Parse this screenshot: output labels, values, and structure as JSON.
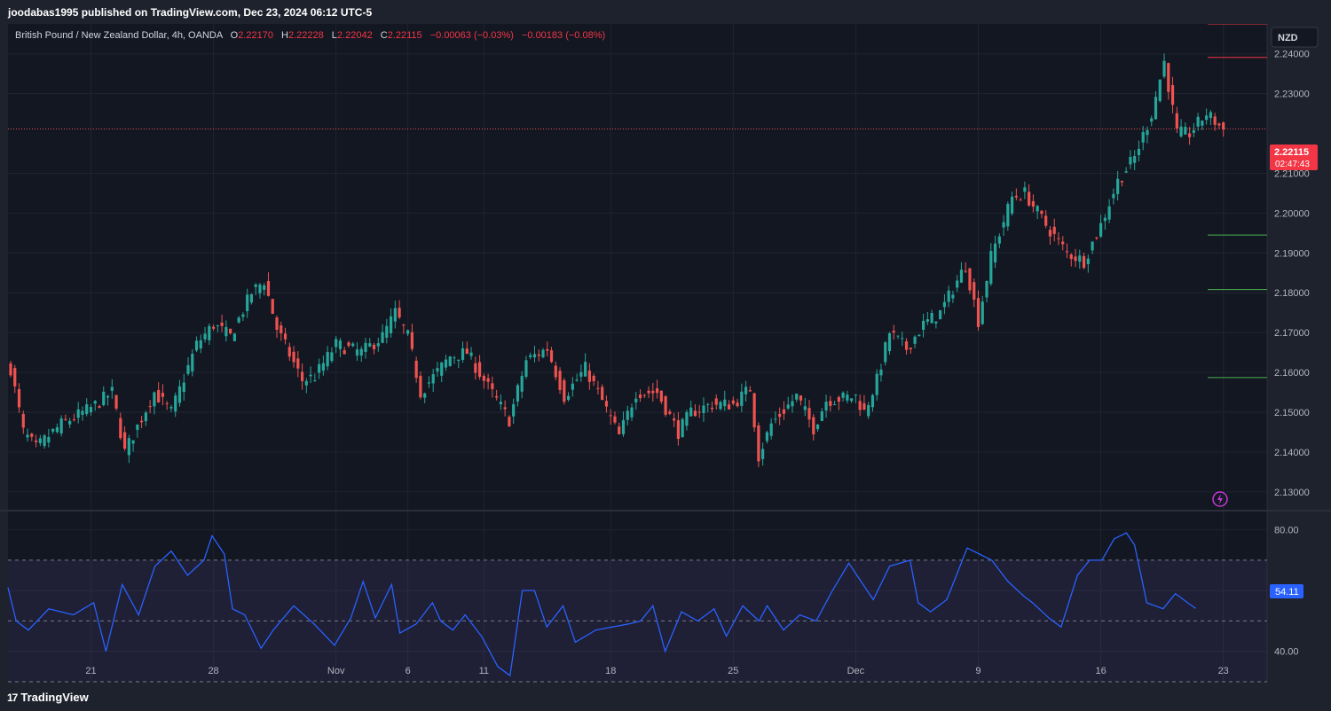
{
  "header": {
    "published": "joodabas1995 published on TradingView.com, Dec 23, 2024 06:12 UTC-5"
  },
  "footer": {
    "logo_text": "TradingView",
    "logo_mark": "17"
  },
  "colors": {
    "up": "#26a69a",
    "down": "#ef5350",
    "rsi_line": "#2962ff",
    "background": "#131722",
    "grid": "#1f2430",
    "text": "#b2b5be"
  },
  "icons": {
    "flash": "lightning-icon"
  },
  "chart_data": [
    {
      "type": "candlestick",
      "legend": {
        "symbol": "British Pound / New Zealand Dollar, 4h, OANDA",
        "o_label": "O",
        "o_value": "2.22170",
        "h_label": "H",
        "h_value": "2.22228",
        "l_label": "L",
        "l_value": "2.22042",
        "c_label": "C",
        "c_value": "2.22115",
        "change": "−0.00063 (−0.03%)",
        "change2": "−0.00183 (−0.08%)"
      },
      "currency_label": "NZD",
      "last_price_label": "2.22115",
      "countdown": "02:47:43",
      "last_price": 2.22115,
      "ylim": [
        2.1255,
        2.2475
      ],
      "yticks": [
        "2.24000",
        "2.23000",
        "2.21000",
        "2.20000",
        "2.19000",
        "2.18000",
        "2.17000",
        "2.16000",
        "2.15000",
        "2.14000",
        "2.13000"
      ],
      "ytick_values": [
        2.24,
        2.23,
        2.21,
        2.2,
        2.19,
        2.18,
        2.17,
        2.16,
        2.15,
        2.14,
        2.13
      ],
      "xticks": [
        "21",
        "28",
        "Nov",
        "6",
        "11",
        "18",
        "25",
        "Dec",
        "9",
        "16",
        "23"
      ],
      "xtick_index": [
        19,
        48,
        77,
        94,
        112,
        142,
        171,
        200,
        229,
        258,
        287
      ],
      "levels": [
        {
          "price": 2.2475,
          "color": "#f23645"
        },
        {
          "price": 2.2391,
          "color": "#f23645"
        },
        {
          "price": 2.2169,
          "color": "#131722"
        },
        {
          "price": 2.1945,
          "color": "#4caf50"
        },
        {
          "price": 2.1808,
          "color": "#4caf50"
        },
        {
          "price": 2.1587,
          "color": "#4caf50"
        }
      ],
      "anchors": [
        [
          0,
          2.161
        ],
        [
          3,
          2.145
        ],
        [
          6,
          2.141
        ],
        [
          12,
          2.147
        ],
        [
          19,
          2.151
        ],
        [
          24,
          2.155
        ],
        [
          27,
          2.14
        ],
        [
          34,
          2.155
        ],
        [
          38,
          2.15
        ],
        [
          44,
          2.167
        ],
        [
          48,
          2.172
        ],
        [
          52,
          2.169
        ],
        [
          57,
          2.18
        ],
        [
          60,
          2.183
        ],
        [
          63,
          2.171
        ],
        [
          69,
          2.158
        ],
        [
          72,
          2.159
        ],
        [
          77,
          2.167
        ],
        [
          83,
          2.165
        ],
        [
          88,
          2.169
        ],
        [
          91,
          2.175
        ],
        [
          94,
          2.169
        ],
        [
          97,
          2.155
        ],
        [
          104,
          2.164
        ],
        [
          108,
          2.165
        ],
        [
          112,
          2.158
        ],
        [
          118,
          2.148
        ],
        [
          122,
          2.163
        ],
        [
          127,
          2.166
        ],
        [
          131,
          2.154
        ],
        [
          136,
          2.161
        ],
        [
          139,
          2.155
        ],
        [
          144,
          2.144
        ],
        [
          148,
          2.155
        ],
        [
          153,
          2.155
        ],
        [
          158,
          2.145
        ],
        [
          161,
          2.15
        ],
        [
          166,
          2.152
        ],
        [
          171,
          2.152
        ],
        [
          175,
          2.156
        ],
        [
          177,
          2.139
        ],
        [
          180,
          2.147
        ],
        [
          186,
          2.154
        ],
        [
          190,
          2.146
        ],
        [
          193,
          2.153
        ],
        [
          200,
          2.154
        ],
        [
          202,
          2.15
        ],
        [
          205,
          2.158
        ],
        [
          208,
          2.17
        ],
        [
          212,
          2.166
        ],
        [
          216,
          2.172
        ],
        [
          220,
          2.175
        ],
        [
          226,
          2.187
        ],
        [
          229,
          2.173
        ],
        [
          232,
          2.189
        ],
        [
          237,
          2.204
        ],
        [
          240,
          2.205
        ],
        [
          245,
          2.197
        ],
        [
          250,
          2.19
        ],
        [
          254,
          2.188
        ],
        [
          258,
          2.197
        ],
        [
          262,
          2.208
        ],
        [
          266,
          2.214
        ],
        [
          270,
          2.225
        ],
        [
          273,
          2.238
        ],
        [
          276,
          2.22
        ],
        [
          279,
          2.22
        ],
        [
          283,
          2.225
        ],
        [
          287,
          2.221
        ]
      ]
    },
    {
      "type": "line",
      "name": "RSI",
      "value_label": "54.11",
      "ylim": [
        30,
        86
      ],
      "yticks": [
        "80.00",
        "60.00",
        "40.00"
      ],
      "ytick_values": [
        80,
        60,
        40
      ],
      "bands": [
        70,
        50,
        30
      ],
      "anchors": [
        [
          0,
          61
        ],
        [
          2,
          50
        ],
        [
          5,
          47
        ],
        [
          10,
          54
        ],
        [
          16,
          52
        ],
        [
          21,
          56
        ],
        [
          24,
          40
        ],
        [
          28,
          62
        ],
        [
          32,
          52
        ],
        [
          36,
          68
        ],
        [
          40,
          73
        ],
        [
          44,
          65
        ],
        [
          48,
          70
        ],
        [
          50,
          78
        ],
        [
          53,
          72
        ],
        [
          55,
          54
        ],
        [
          58,
          52
        ],
        [
          62,
          41
        ],
        [
          65,
          47
        ],
        [
          70,
          55
        ],
        [
          75,
          49
        ],
        [
          80,
          42
        ],
        [
          84,
          51
        ],
        [
          87,
          63
        ],
        [
          90,
          51
        ],
        [
          94,
          62
        ],
        [
          96,
          46
        ],
        [
          100,
          49
        ],
        [
          104,
          56
        ],
        [
          106,
          50
        ],
        [
          109,
          47
        ],
        [
          112,
          52
        ],
        [
          116,
          45
        ],
        [
          120,
          35
        ],
        [
          123,
          32
        ],
        [
          126,
          60
        ],
        [
          129,
          60
        ],
        [
          132,
          48
        ],
        [
          136,
          55
        ],
        [
          139,
          43
        ],
        [
          144,
          47
        ],
        [
          148,
          48
        ],
        [
          152,
          49
        ],
        [
          155,
          50
        ],
        [
          158,
          55
        ],
        [
          161,
          40
        ],
        [
          165,
          53
        ],
        [
          169,
          50
        ],
        [
          173,
          54
        ],
        [
          176,
          45
        ],
        [
          180,
          55
        ],
        [
          184,
          50
        ],
        [
          186,
          55
        ],
        [
          190,
          47
        ],
        [
          194,
          52
        ],
        [
          198,
          50
        ],
        [
          200,
          55
        ],
        [
          202,
          60
        ],
        [
          206,
          69
        ],
        [
          209,
          63
        ],
        [
          212,
          57
        ],
        [
          216,
          68
        ],
        [
          221,
          70
        ],
        [
          223,
          56
        ],
        [
          226,
          53
        ],
        [
          230,
          57
        ],
        [
          235,
          74
        ],
        [
          238,
          72
        ],
        [
          241,
          70
        ],
        [
          245,
          63
        ],
        [
          249,
          58
        ],
        [
          251,
          56
        ],
        [
          255,
          51
        ],
        [
          258,
          48
        ],
        [
          262,
          65
        ],
        [
          265,
          70
        ],
        [
          268,
          70
        ],
        [
          271,
          77
        ],
        [
          274,
          79
        ],
        [
          276,
          75
        ],
        [
          279,
          56
        ],
        [
          283,
          54
        ],
        [
          286,
          59
        ],
        [
          289,
          56
        ],
        [
          291,
          54.11
        ]
      ]
    }
  ]
}
